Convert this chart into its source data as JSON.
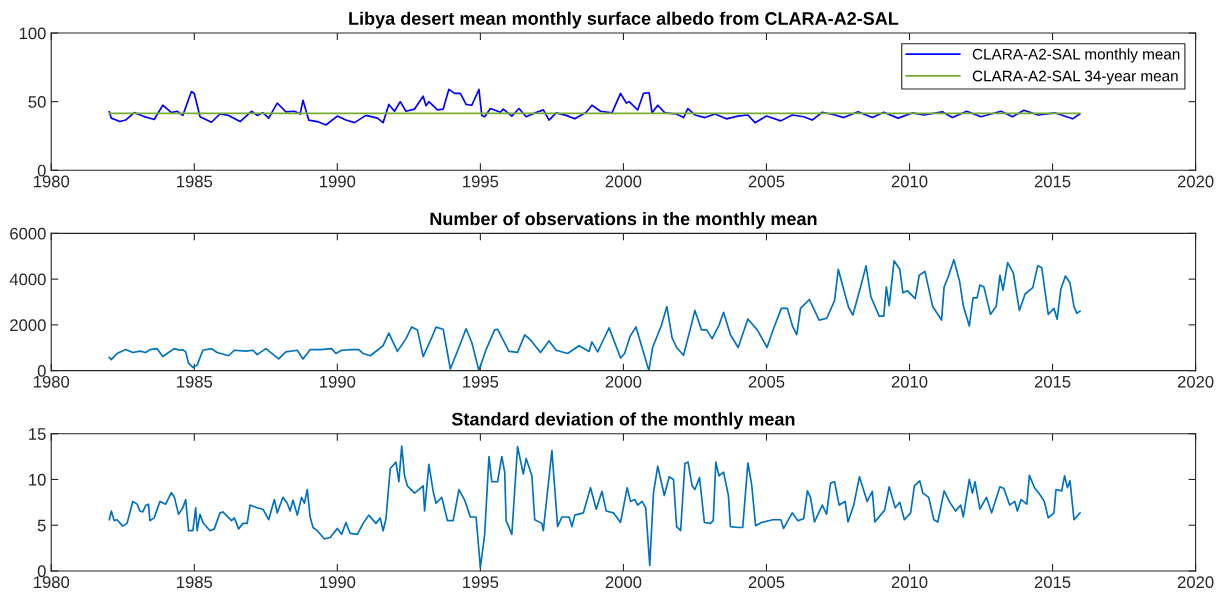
{
  "chart_data": [
    {
      "type": "line",
      "title": "Libya desert mean monthly surface albedo from CLARA-A2-SAL",
      "xlim": [
        1980,
        2020
      ],
      "xticks": [
        1980,
        1985,
        1990,
        1995,
        2000,
        2005,
        2010,
        2015,
        2020
      ],
      "ylim": [
        0,
        100
      ],
      "yticks": [
        0,
        50,
        100
      ],
      "grid": false,
      "legend": "top right",
      "series": [
        {
          "name": "CLARA-A2-SAL monthly mean",
          "color": "#0000ff",
          "x": [
            1982.03,
            1982.1,
            1982.4,
            1982.6,
            1982.9,
            1983.2,
            1983.6,
            1983.9,
            1984.2,
            1984.4,
            1984.6,
            1984.9,
            1985.0,
            1985.2,
            1985.6,
            1985.9,
            1986.2,
            1986.6,
            1987.0,
            1987.2,
            1987.4,
            1987.6,
            1987.9,
            1988.2,
            1988.5,
            1988.7,
            1988.8,
            1989.0,
            1989.3,
            1989.6,
            1990.0,
            1990.3,
            1990.6,
            1991.0,
            1991.4,
            1991.6,
            1991.8,
            1992.0,
            1992.2,
            1992.4,
            1992.7,
            1993.0,
            1993.1,
            1993.2,
            1993.5,
            1993.7,
            1993.9,
            1994.1,
            1994.3,
            1994.5,
            1994.7,
            1994.95,
            1995.05,
            1995.15,
            1995.35,
            1995.7,
            1995.8,
            1996.1,
            1996.35,
            1996.6,
            1996.9,
            1997.2,
            1997.4,
            1997.65,
            1998.0,
            1998.3,
            1998.7,
            1998.9,
            1999.2,
            1999.6,
            1999.9,
            2000.1,
            2000.2,
            2000.5,
            2000.7,
            2000.9,
            2001.0,
            2001.2,
            2001.45,
            2001.85,
            2002.1,
            2002.25,
            2002.5,
            2002.85,
            2003.2,
            2003.6,
            2004.0,
            2004.35,
            2004.6,
            2005.0,
            2005.5,
            2005.9,
            2006.3,
            2006.6,
            2006.95,
            2007.4,
            2007.7,
            2008.2,
            2008.7,
            2009.1,
            2009.6,
            2010.1,
            2010.5,
            2011.15,
            2011.5,
            2012.0,
            2012.5,
            2013.2,
            2013.6,
            2014.0,
            2014.5,
            2015.1,
            2015.7,
            2015.95
          ],
          "values": [
            42.6,
            38,
            35.5,
            36.6,
            42,
            39.5,
            37,
            47.4,
            42,
            43,
            40,
            57.4,
            56,
            39,
            35,
            41,
            40,
            35.5,
            43,
            40,
            42,
            38,
            49,
            42.6,
            43,
            41,
            51,
            36.6,
            35.5,
            33,
            39.5,
            36.6,
            34.7,
            40,
            38,
            34.7,
            48,
            43,
            50,
            43,
            44.6,
            54,
            47,
            50,
            44,
            44.6,
            59,
            56,
            56,
            48,
            47.4,
            59,
            40,
            39,
            45,
            42.3,
            44.6,
            39.5,
            45,
            39,
            41.8,
            44,
            36.6,
            41.8,
            40,
            37.5,
            42.3,
            47.4,
            43,
            41.8,
            56,
            49,
            50,
            44,
            56,
            56.5,
            41.8,
            47.4,
            41.8,
            41,
            38.4,
            45,
            40.3,
            38.4,
            41,
            37.5,
            39.5,
            40.3,
            34.7,
            39.5,
            36,
            40.3,
            39,
            36.6,
            42.3,
            40.3,
            38.4,
            42.6,
            38.4,
            42.3,
            38,
            41.8,
            40.3,
            42.6,
            38.4,
            43,
            39,
            43,
            39,
            43.7,
            40.3,
            41.8,
            37.5,
            41
          ]
        },
        {
          "name": "CLARA-A2-SAL 34-year mean",
          "color": "#77ac30",
          "x": [
            1982.03,
            2015.95
          ],
          "values": [
            41.5,
            41.5
          ]
        }
      ]
    },
    {
      "type": "line",
      "title": "Number of observations in the monthly mean",
      "xlim": [
        1980,
        2020
      ],
      "xticks": [
        1980,
        1985,
        1990,
        1995,
        2000,
        2005,
        2010,
        2015,
        2020
      ],
      "ylim": [
        0,
        6000
      ],
      "yticks": [
        0,
        2000,
        4000,
        6000
      ],
      "grid": false,
      "series": [
        {
          "color": "#0072bd",
          "x": [
            1982.03,
            1982.1,
            1982.3,
            1982.6,
            1982.85,
            1983.1,
            1983.3,
            1983.45,
            1983.7,
            1983.9,
            1984.1,
            1984.3,
            1984.5,
            1984.6,
            1984.7,
            1984.8,
            1984.95,
            1985.1,
            1985.3,
            1985.6,
            1985.8,
            1986.2,
            1986.4,
            1986.8,
            1987.05,
            1987.2,
            1987.5,
            1987.95,
            1988.2,
            1988.6,
            1988.8,
            1988.95,
            1989.05,
            1989.4,
            1989.8,
            1989.95,
            1990.15,
            1990.5,
            1990.75,
            1990.9,
            1991.15,
            1991.4,
            1991.6,
            1991.8,
            1992.1,
            1992.4,
            1992.6,
            1992.8,
            1993.0,
            1993.3,
            1993.45,
            1993.7,
            1993.95,
            1994.25,
            1994.5,
            1994.7,
            1994.95,
            1995.2,
            1995.5,
            1995.6,
            1996.0,
            1996.3,
            1996.55,
            1996.75,
            1997.1,
            1997.4,
            1997.65,
            1998.05,
            1998.45,
            1998.8,
            1998.9,
            1999.1,
            1999.3,
            1999.5,
            1999.9,
            2000.04,
            2000.24,
            2000.44,
            2000.65,
            2000.89,
            2001.02,
            2001.32,
            2001.52,
            2001.7,
            2001.86,
            2002.1,
            2002.33,
            2002.5,
            2002.73,
            2002.91,
            2003.1,
            2003.34,
            2003.5,
            2003.74,
            2004.01,
            2004.35,
            2004.68,
            2005.02,
            2005.22,
            2005.52,
            2005.73,
            2005.92,
            2006.06,
            2006.19,
            2006.5,
            2006.84,
            2007.11,
            2007.38,
            2007.51,
            2007.71,
            2007.87,
            2008.02,
            2008.29,
            2008.48,
            2008.65,
            2008.94,
            2009.1,
            2009.19,
            2009.29,
            2009.46,
            2009.66,
            2009.77,
            2009.93,
            2010.2,
            2010.34,
            2010.54,
            2010.81,
            2011.12,
            2011.21,
            2011.35,
            2011.55,
            2011.75,
            2011.88,
            2012.09,
            2012.22,
            2012.36,
            2012.46,
            2012.6,
            2012.83,
            2013.03,
            2013.16,
            2013.27,
            2013.43,
            2013.63,
            2013.84,
            2014.04,
            2014.31,
            2014.48,
            2014.62,
            2014.85,
            2015.05,
            2015.16,
            2015.29,
            2015.45,
            2015.61,
            2015.75,
            2015.85,
            2015.96
          ],
          "values": [
            580,
            480,
            750,
            920,
            790,
            850,
            790,
            920,
            960,
            615,
            790,
            960,
            890,
            920,
            820,
            325,
            140,
            240,
            890,
            960,
            790,
            650,
            890,
            850,
            890,
            700,
            960,
            510,
            820,
            890,
            510,
            750,
            920,
            920,
            960,
            750,
            890,
            920,
            920,
            750,
            650,
            890,
            1090,
            1640,
            840,
            1400,
            1910,
            1780,
            615,
            1440,
            1900,
            1810,
            70,
            1010,
            1830,
            1230,
            0,
            920,
            1780,
            1810,
            840,
            800,
            1560,
            1350,
            790,
            1300,
            890,
            750,
            1090,
            840,
            1260,
            820,
            1350,
            1870,
            550,
            750,
            1520,
            1910,
            1010,
            0,
            1010,
            1950,
            2800,
            1440,
            1010,
            670,
            1780,
            2630,
            1780,
            1780,
            1400,
            1980,
            2550,
            1570,
            1010,
            2260,
            1780,
            1010,
            1740,
            2720,
            2720,
            1910,
            1570,
            2720,
            3110,
            2210,
            2290,
            3060,
            4430,
            3490,
            2770,
            2430,
            3660,
            4580,
            3230,
            2380,
            2380,
            3660,
            2840,
            4800,
            4430,
            3400,
            3490,
            3150,
            4170,
            4340,
            2800,
            2210,
            3660,
            4080,
            4850,
            3910,
            2840,
            1950,
            3180,
            3180,
            3740,
            3660,
            2460,
            2800,
            4170,
            3520,
            4720,
            4260,
            2630,
            3350,
            3630,
            4580,
            4510,
            2460,
            2720,
            2250,
            3570,
            4140,
            3830,
            2800,
            2500,
            2600
          ]
        }
      ]
    },
    {
      "type": "line",
      "title": "Standard deviation of the monthly mean",
      "xlim": [
        1980,
        2020
      ],
      "xticks": [
        1980,
        1985,
        1990,
        1995,
        2000,
        2005,
        2010,
        2015,
        2020
      ],
      "ylim": [
        0,
        15
      ],
      "yticks": [
        0,
        5,
        10,
        15
      ],
      "grid": false,
      "series": [
        {
          "color": "#0072bd",
          "x": [
            1982.03,
            1982.1,
            1982.2,
            1982.3,
            1982.5,
            1982.65,
            1982.85,
            1983.0,
            1983.1,
            1983.2,
            1983.3,
            1983.4,
            1983.45,
            1983.6,
            1983.8,
            1984.0,
            1984.2,
            1984.3,
            1984.45,
            1984.6,
            1984.7,
            1984.8,
            1984.95,
            1985.05,
            1985.1,
            1985.2,
            1985.3,
            1985.55,
            1985.7,
            1985.9,
            1986.0,
            1986.3,
            1986.4,
            1986.55,
            1986.7,
            1986.85,
            1986.95,
            1987.2,
            1987.4,
            1987.6,
            1987.8,
            1987.9,
            1988.1,
            1988.25,
            1988.35,
            1988.45,
            1988.6,
            1988.75,
            1988.85,
            1988.95,
            1989.05,
            1989.15,
            1989.3,
            1989.55,
            1989.75,
            1990.0,
            1990.15,
            1990.3,
            1990.45,
            1990.7,
            1990.9,
            1991.1,
            1991.35,
            1991.5,
            1991.6,
            1991.7,
            1991.85,
            1992.05,
            1992.15,
            1992.25,
            1992.35,
            1992.45,
            1992.7,
            1992.85,
            1993.0,
            1993.05,
            1993.2,
            1993.35,
            1993.45,
            1993.65,
            1993.85,
            1994.05,
            1994.25,
            1994.45,
            1994.65,
            1994.85,
            1995.0,
            1995.15,
            1995.3,
            1995.4,
            1995.6,
            1995.75,
            1995.85,
            1995.9,
            1996.1,
            1996.3,
            1996.5,
            1996.6,
            1996.8,
            1996.9,
            1997.15,
            1997.2,
            1997.5,
            1997.7,
            1997.85,
            1998.1,
            1998.2,
            1998.3,
            1998.6,
            1998.85,
            1999.05,
            1999.25,
            1999.4,
            1999.65,
            1999.9,
            2000.13,
            2000.25,
            2000.4,
            2000.5,
            2000.65,
            2000.78,
            2000.92,
            2001.05,
            2001.2,
            2001.43,
            2001.6,
            2001.75,
            2001.86,
            2002.0,
            2002.15,
            2002.26,
            2002.4,
            2002.5,
            2002.66,
            2002.83,
            2003.04,
            2003.14,
            2003.23,
            2003.34,
            2003.5,
            2003.67,
            2003.74,
            2004.01,
            2004.17,
            2004.35,
            2004.48,
            2004.62,
            2004.82,
            2005.22,
            2005.5,
            2005.6,
            2005.9,
            2006.1,
            2006.3,
            2006.43,
            2006.54,
            2006.68,
            2006.95,
            2007.1,
            2007.24,
            2007.38,
            2007.54,
            2007.75,
            2007.85,
            2008.05,
            2008.25,
            2008.52,
            2008.7,
            2008.79,
            2009.13,
            2009.29,
            2009.5,
            2009.66,
            2009.82,
            2010.04,
            2010.17,
            2010.36,
            2010.47,
            2010.67,
            2010.85,
            2010.99,
            2011.21,
            2011.41,
            2011.61,
            2011.79,
            2011.88,
            2012.09,
            2012.2,
            2012.29,
            2012.46,
            2012.69,
            2012.87,
            2013.16,
            2013.3,
            2013.5,
            2013.68,
            2013.77,
            2013.9,
            2014.1,
            2014.19,
            2014.37,
            2014.58,
            2014.71,
            2014.85,
            2015.05,
            2015.12,
            2015.32,
            2015.42,
            2015.52,
            2015.61,
            2015.75,
            2015.96
          ],
          "values": [
            5.6,
            6.55,
            5.5,
            5.6,
            4.9,
            5.2,
            7.6,
            7.3,
            6.55,
            6.45,
            7.15,
            7.3,
            5.5,
            5.8,
            7.6,
            7.3,
            8.55,
            8.1,
            6.2,
            6.9,
            7.8,
            4.4,
            4.4,
            6.9,
            4.4,
            6.2,
            5.3,
            4.4,
            4.6,
            6.35,
            6.45,
            5.5,
            5.8,
            4.6,
            5.2,
            5.2,
            7.2,
            6.9,
            6.75,
            5.6,
            7.8,
            6.35,
            8.05,
            7.4,
            6.55,
            7.75,
            6.1,
            8.05,
            7.4,
            8.9,
            5.9,
            4.75,
            4.4,
            3.5,
            3.65,
            4.65,
            4.0,
            5.3,
            4.1,
            4.0,
            5.2,
            6.1,
            5.2,
            5.8,
            4.4,
            5.7,
            11.2,
            11.9,
            9.75,
            13.65,
            10.4,
            9.3,
            8.5,
            8.9,
            9.3,
            6.55,
            11.65,
            8.7,
            7.4,
            8.05,
            5.5,
            5.5,
            8.9,
            7.75,
            5.9,
            5.9,
            0.4,
            4.0,
            12.5,
            9.75,
            9.75,
            12.5,
            10.8,
            5.5,
            4.0,
            13.6,
            10.6,
            12.3,
            10.4,
            5.6,
            5.2,
            4.4,
            13.15,
            4.85,
            5.9,
            5.9,
            4.85,
            6.1,
            6.35,
            9.1,
            6.75,
            8.7,
            6.55,
            6.35,
            5.3,
            9.1,
            7.6,
            7.8,
            7.2,
            7.6,
            6.9,
            0.6,
            8.5,
            11.45,
            8.25,
            10.3,
            10.0,
            4.85,
            4.4,
            11.75,
            11.9,
            9.3,
            8.9,
            10.2,
            5.3,
            5.2,
            5.5,
            11.9,
            10.4,
            10.8,
            8.25,
            4.85,
            4.75,
            4.75,
            11.8,
            9.5,
            4.95,
            5.3,
            5.6,
            5.6,
            4.65,
            6.35,
            5.5,
            5.7,
            8.75,
            8.05,
            5.35,
            7.2,
            6.2,
            9.6,
            9.75,
            7.2,
            7.6,
            5.35,
            7.2,
            10.3,
            7.6,
            8.7,
            5.35,
            6.65,
            9.2,
            6.9,
            7.5,
            5.6,
            6.35,
            9.3,
            9.85,
            8.5,
            8.05,
            5.6,
            5.35,
            8.75,
            7.5,
            6.55,
            7.2,
            5.9,
            10.0,
            8.5,
            9.75,
            6.75,
            8.05,
            6.35,
            9.2,
            9.0,
            7.2,
            7.6,
            6.55,
            7.8,
            7.3,
            10.45,
            9.1,
            8.25,
            7.6,
            5.8,
            6.35,
            8.9,
            8.75,
            10.4,
            9.1,
            9.85,
            5.6,
            6.35
          ]
        }
      ]
    }
  ]
}
